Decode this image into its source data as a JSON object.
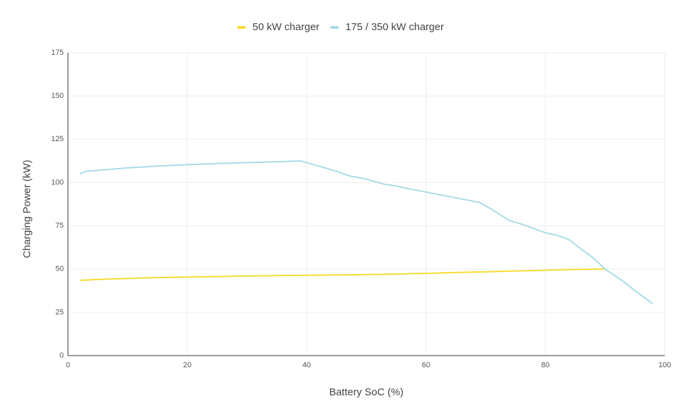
{
  "chart_data": {
    "type": "line",
    "xlabel": "Battery SoC (%)",
    "ylabel": "Charging Power (kW)",
    "xlim": [
      0,
      100
    ],
    "xticks": [
      0,
      20,
      40,
      60,
      80,
      100
    ],
    "ylim": [
      0,
      175
    ],
    "yticks": [
      0,
      25,
      50,
      75,
      100,
      125,
      150,
      175
    ],
    "grid": true,
    "legend": "top",
    "series": [
      {
        "name": "50 kW charger",
        "color": "#f7dc2f",
        "x": [
          2,
          5,
          10,
          15,
          20,
          25,
          30,
          35,
          40,
          45,
          50,
          55,
          60,
          65,
          70,
          75,
          80,
          85,
          90
        ],
        "values": [
          43.5,
          44,
          44.6,
          45.1,
          45.4,
          45.7,
          46,
          46.2,
          46.4,
          46.6,
          46.8,
          47.1,
          47.5,
          48,
          48.4,
          48.9,
          49.3,
          49.8,
          50
        ]
      },
      {
        "name": "175 / 350 kW charger",
        "color": "#a8dbe8",
        "x": [
          2,
          3,
          5,
          10,
          15,
          20,
          25,
          30,
          35,
          39,
          42,
          45,
          47,
          50,
          53,
          55,
          57,
          60,
          63,
          66,
          69,
          71,
          74,
          76,
          78,
          80,
          82,
          84,
          86,
          88,
          90,
          93,
          95,
          98
        ],
        "values": [
          105,
          106.5,
          107,
          108.5,
          109.5,
          110.3,
          111,
          111.5,
          112,
          112.5,
          109.5,
          106.5,
          104,
          102,
          99,
          98,
          96.5,
          94.5,
          92.5,
          90.5,
          88.5,
          84.5,
          78,
          76,
          73.5,
          71,
          69.5,
          67,
          61.5,
          56.5,
          50,
          43,
          37.5,
          30
        ]
      }
    ]
  }
}
